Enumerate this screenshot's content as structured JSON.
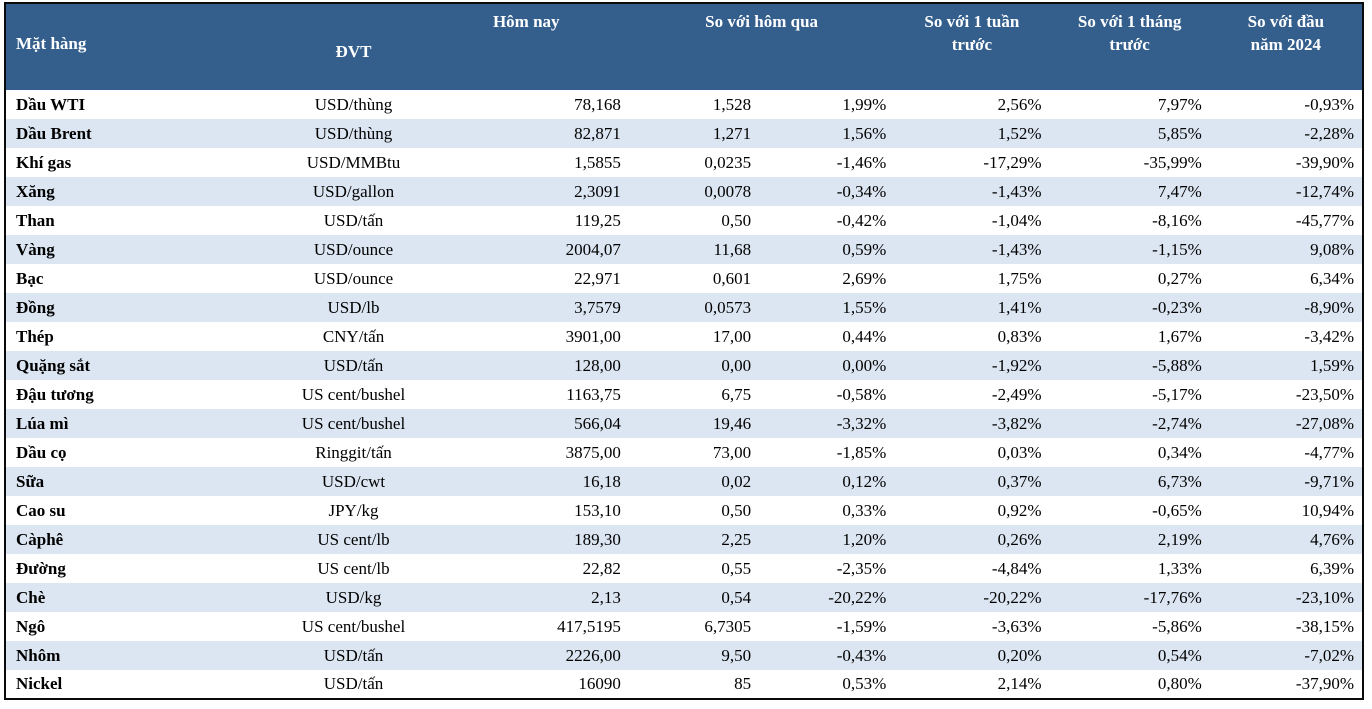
{
  "colors": {
    "header_bg": "#345F8D",
    "header_text": "#FFFFFF",
    "alt_row_bg": "#DCE6F2",
    "border": "#0A0A0A"
  },
  "table": {
    "headers": {
      "item": "Mặt hàng",
      "unit": "ĐVT",
      "today": "Hôm nay",
      "vs_yesterday": "So với hôm qua",
      "vs_week": "So với 1 tuần\ntrước",
      "vs_month": "So với 1 tháng\ntrước",
      "vs_ytd": "So với đầu\nnăm 2024"
    },
    "rows": [
      [
        "Dầu WTI",
        "USD/thùng",
        "78,168",
        "1,528",
        "1,99%",
        "2,56%",
        "7,97%",
        "-0,93%"
      ],
      [
        "Dầu Brent",
        "USD/thùng",
        "82,871",
        "1,271",
        "1,56%",
        "1,52%",
        "5,85%",
        "-2,28%"
      ],
      [
        "Khí gas",
        "USD/MMBtu",
        "1,5855",
        "0,0235",
        "-1,46%",
        "-17,29%",
        "-35,99%",
        "-39,90%"
      ],
      [
        "Xăng",
        "USD/gallon",
        "2,3091",
        "0,0078",
        "-0,34%",
        "-1,43%",
        "7,47%",
        "-12,74%"
      ],
      [
        "Than",
        "USD/tấn",
        "119,25",
        "0,50",
        "-0,42%",
        "-1,04%",
        "-8,16%",
        "-45,77%"
      ],
      [
        "Vàng",
        "USD/ounce",
        "2004,07",
        "11,68",
        "0,59%",
        "-1,43%",
        "-1,15%",
        "9,08%"
      ],
      [
        "Bạc",
        "USD/ounce",
        "22,971",
        "0,601",
        "2,69%",
        "1,75%",
        "0,27%",
        "6,34%"
      ],
      [
        "Đồng",
        "USD/lb",
        "3,7579",
        "0,0573",
        "1,55%",
        "1,41%",
        "-0,23%",
        "-8,90%"
      ],
      [
        "Thép",
        "CNY/tấn",
        "3901,00",
        "17,00",
        "0,44%",
        "0,83%",
        "1,67%",
        "-3,42%"
      ],
      [
        "Quặng sắt",
        "USD/tấn",
        "128,00",
        "0,00",
        "0,00%",
        "-1,92%",
        "-5,88%",
        "1,59%"
      ],
      [
        "Đậu tương",
        "US cent/bushel",
        "1163,75",
        "6,75",
        "-0,58%",
        "-2,49%",
        "-5,17%",
        "-23,50%"
      ],
      [
        "Lúa mì",
        "US cent/bushel",
        "566,04",
        "19,46",
        "-3,32%",
        "-3,82%",
        "-2,74%",
        "-27,08%"
      ],
      [
        "Dầu cọ",
        "Ringgit/tấn",
        "3875,00",
        "73,00",
        "-1,85%",
        "0,03%",
        "0,34%",
        "-4,77%"
      ],
      [
        "Sữa",
        "USD/cwt",
        "16,18",
        "0,02",
        "0,12%",
        "0,37%",
        "6,73%",
        "-9,71%"
      ],
      [
        "Cao su",
        "JPY/kg",
        "153,10",
        "0,50",
        "0,33%",
        "0,92%",
        "-0,65%",
        "10,94%"
      ],
      [
        "Càphê",
        "US cent/lb",
        "189,30",
        "2,25",
        "1,20%",
        "0,26%",
        "2,19%",
        "4,76%"
      ],
      [
        "Đường",
        "US cent/lb",
        "22,82",
        "0,55",
        "-2,35%",
        "-4,84%",
        "1,33%",
        "6,39%"
      ],
      [
        "Chè",
        "USD/kg",
        "2,13",
        "0,54",
        "-20,22%",
        "-20,22%",
        "-17,76%",
        "-23,10%"
      ],
      [
        "Ngô",
        "US cent/bushel",
        "417,5195",
        "6,7305",
        "-1,59%",
        "-3,63%",
        "-5,86%",
        "-38,15%"
      ],
      [
        "Nhôm",
        "USD/tấn",
        "2226,00",
        "9,50",
        "-0,43%",
        "0,20%",
        "0,54%",
        "-7,02%"
      ],
      [
        "Nickel",
        "USD/tấn",
        "16090",
        "85",
        "0,53%",
        "2,14%",
        "0,80%",
        "-37,90%"
      ]
    ]
  }
}
